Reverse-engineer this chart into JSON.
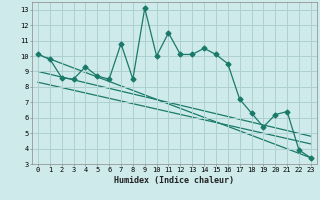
{
  "xlabel": "Humidex (Indice chaleur)",
  "background_color": "#ceeaea",
  "grid_color": "#aed0d0",
  "line_color": "#1a7a6a",
  "xlim": [
    -0.5,
    23.5
  ],
  "ylim": [
    3,
    13.5
  ],
  "xticks": [
    0,
    1,
    2,
    3,
    4,
    5,
    6,
    7,
    8,
    9,
    10,
    11,
    12,
    13,
    14,
    15,
    16,
    17,
    18,
    19,
    20,
    21,
    22,
    23
  ],
  "yticks": [
    3,
    4,
    5,
    6,
    7,
    8,
    9,
    10,
    11,
    12,
    13
  ],
  "line1_x": [
    0,
    1,
    2,
    3,
    4,
    5,
    6,
    7,
    8,
    9,
    10,
    11,
    12,
    13,
    14,
    15,
    16,
    17,
    18,
    19,
    20,
    21,
    22,
    23
  ],
  "line1_y": [
    10.1,
    9.8,
    8.6,
    8.5,
    9.3,
    8.7,
    8.5,
    10.8,
    8.5,
    13.1,
    10.0,
    11.5,
    10.1,
    10.1,
    10.5,
    10.1,
    9.5,
    7.2,
    6.3,
    5.4,
    6.2,
    6.4,
    3.9,
    3.4
  ],
  "line2_x": [
    0,
    23
  ],
  "line2_y": [
    10.1,
    3.4
  ],
  "line3_x": [
    0,
    23
  ],
  "line3_y": [
    8.3,
    4.3
  ],
  "line4_x": [
    0,
    23
  ],
  "line4_y": [
    9.0,
    4.8
  ],
  "marker": "D",
  "markersize": 2.5,
  "linewidth": 0.9,
  "axis_fontsize": 6,
  "tick_fontsize": 5
}
